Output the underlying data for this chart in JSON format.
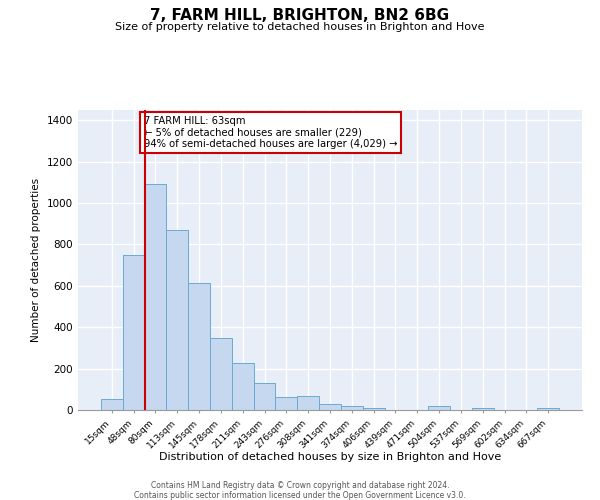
{
  "title": "7, FARM HILL, BRIGHTON, BN2 6BG",
  "subtitle": "Size of property relative to detached houses in Brighton and Hove",
  "xlabel": "Distribution of detached houses by size in Brighton and Hove",
  "ylabel": "Number of detached properties",
  "bar_labels": [
    "15sqm",
    "48sqm",
    "80sqm",
    "113sqm",
    "145sqm",
    "178sqm",
    "211sqm",
    "243sqm",
    "276sqm",
    "308sqm",
    "341sqm",
    "374sqm",
    "406sqm",
    "439sqm",
    "471sqm",
    "504sqm",
    "537sqm",
    "569sqm",
    "602sqm",
    "634sqm",
    "667sqm"
  ],
  "bar_values": [
    55,
    750,
    1090,
    870,
    615,
    350,
    228,
    132,
    65,
    70,
    27,
    18,
    8,
    0,
    0,
    18,
    0,
    12,
    0,
    0,
    12
  ],
  "bar_color": "#c5d8f0",
  "bar_edge_color": "#6aaad4",
  "vline_color": "#cc0000",
  "ylim": [
    0,
    1450
  ],
  "yticks": [
    0,
    200,
    400,
    600,
    800,
    1000,
    1200,
    1400
  ],
  "annotation_title": "7 FARM HILL: 63sqm",
  "annotation_line1": "← 5% of detached houses are smaller (229)",
  "annotation_line2": "94% of semi-detached houses are larger (4,029) →",
  "annotation_box_color": "#ffffff",
  "annotation_box_edge_color": "#cc0000",
  "footnote1": "Contains HM Land Registry data © Crown copyright and database right 2024.",
  "footnote2": "Contains public sector information licensed under the Open Government Licence v3.0.",
  "bg_color": "#ffffff",
  "plot_bg_color": "#e8eef8"
}
